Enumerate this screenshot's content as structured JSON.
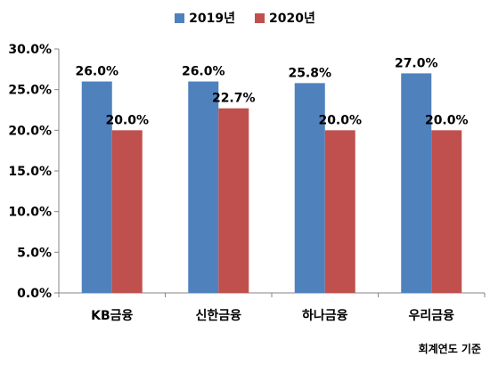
{
  "chart_data": {
    "type": "bar",
    "categories": [
      "KB금융",
      "신한금융",
      "하나금융",
      "우리금융"
    ],
    "series": [
      {
        "name": "2019년",
        "color": "#4f81bd",
        "values": [
          26.0,
          26.0,
          25.8,
          27.0
        ],
        "labels": [
          "26.0%",
          "26.0%",
          "25.8%",
          "27.0%"
        ]
      },
      {
        "name": "2020년",
        "color": "#c0504d",
        "values": [
          20.0,
          22.7,
          20.0,
          20.0
        ],
        "labels": [
          "20.0%",
          "22.7%",
          "20.0%",
          "20.0%"
        ]
      }
    ],
    "ylim": [
      0,
      30
    ],
    "yticks": [
      0,
      5,
      10,
      15,
      20,
      25,
      30
    ],
    "ytick_labels": [
      "0.0%",
      "5.0%",
      "10.0%",
      "15.0%",
      "20.0%",
      "25.0%",
      "30.0%"
    ],
    "legend_position": "top-center",
    "grid": false
  },
  "footnote": "회계연도 기준"
}
